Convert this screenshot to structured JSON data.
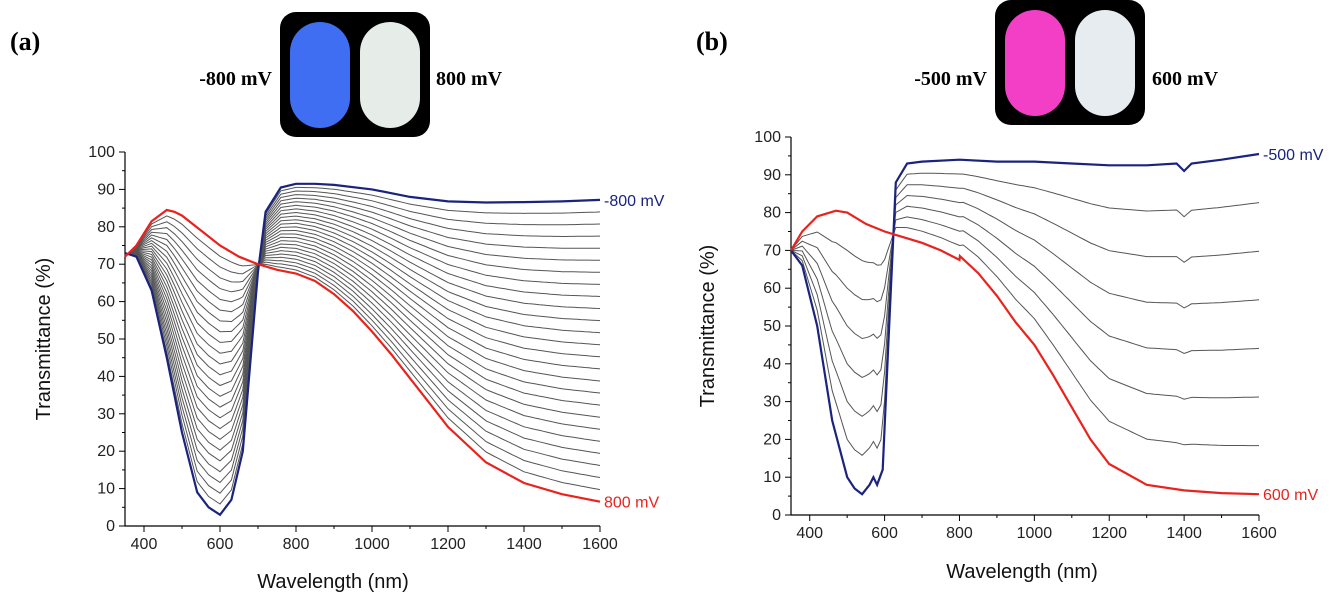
{
  "chart_data": [
    {
      "type": "line",
      "panel_label": "(a)",
      "photo": {
        "left_label": "-800 mV",
        "right_label": "800 mV",
        "left_color": "#3f6ef2",
        "right_color": "#e6ece8",
        "frame_color": "#000000"
      },
      "xlabel": "Wavelength (nm)",
      "ylabel": "Transmittance (%)",
      "xlim": [
        350,
        1600
      ],
      "ylim": [
        0,
        100
      ],
      "xticks": [
        400,
        600,
        800,
        1000,
        1200,
        1400,
        1600
      ],
      "yticks": [
        0,
        10,
        20,
        30,
        40,
        50,
        60,
        70,
        80,
        90,
        100
      ],
      "intermediate_color": "#555555",
      "intermediate_count": 24,
      "series": [
        {
          "name": "-800 mV",
          "color": "#1a237e",
          "x": [
            350,
            380,
            420,
            460,
            500,
            540,
            570,
            600,
            630,
            660,
            700,
            720,
            760,
            800,
            850,
            900,
            1000,
            1100,
            1200,
            1300,
            1400,
            1500,
            1600
          ],
          "y": [
            73,
            72,
            63,
            45,
            25,
            9,
            5,
            3,
            7,
            20,
            68,
            84,
            90.5,
            91.5,
            91.5,
            91.2,
            90,
            88,
            86.8,
            86.5,
            86.6,
            86.8,
            87.2
          ]
        },
        {
          "name": "800 mV",
          "color": "#e8231e",
          "x": [
            350,
            380,
            420,
            460,
            480,
            500,
            550,
            600,
            650,
            700,
            750,
            800,
            850,
            900,
            950,
            1000,
            1050,
            1100,
            1150,
            1200,
            1300,
            1400,
            1500,
            1600
          ],
          "y": [
            72,
            75,
            81.5,
            84.5,
            84,
            83,
            79,
            75,
            72,
            70,
            68.5,
            67.5,
            65.5,
            62,
            57.5,
            52,
            46,
            39.5,
            33,
            26.5,
            17,
            11.5,
            8.5,
            6.5
          ]
        }
      ]
    },
    {
      "type": "line",
      "panel_label": "(b)",
      "photo": {
        "left_label": "-500 mV",
        "right_label": "600 mV",
        "left_color": "#f23fc6",
        "right_color": "#e6ecef",
        "frame_color": "#000000"
      },
      "xlabel": "Wavelength (nm)",
      "ylabel": "Transmittance (%)",
      "xlim": [
        350,
        1600
      ],
      "ylim": [
        0,
        100
      ],
      "xticks": [
        400,
        600,
        800,
        1000,
        1200,
        1400,
        1600
      ],
      "yticks": [
        0,
        10,
        20,
        30,
        40,
        50,
        60,
        70,
        80,
        90,
        100
      ],
      "intermediate_color": "#555555",
      "intermediate_count": 6,
      "series": [
        {
          "name": "-500 mV",
          "color": "#1a237e",
          "x": [
            350,
            380,
            420,
            460,
            500,
            520,
            540,
            560,
            570,
            580,
            595,
            610,
            630,
            660,
            700,
            800,
            900,
            1000,
            1100,
            1200,
            1300,
            1380,
            1400,
            1420,
            1500,
            1600
          ],
          "y": [
            70,
            66,
            50,
            25,
            10,
            7,
            5.5,
            8,
            10,
            8,
            12,
            45,
            88,
            93,
            93.5,
            94,
            93.5,
            93.5,
            93,
            92.5,
            92.5,
            93,
            91,
            93,
            94,
            95.5
          ]
        },
        {
          "name": "600 mV",
          "color": "#e8231e",
          "x": [
            350,
            380,
            420,
            470,
            500,
            550,
            600,
            650,
            700,
            750,
            800,
            801,
            850,
            900,
            950,
            1000,
            1050,
            1100,
            1150,
            1200,
            1300,
            1400,
            1500,
            1600
          ],
          "y": [
            70,
            75,
            79,
            80.5,
            80,
            77,
            75,
            73.5,
            72,
            70,
            67.5,
            68.5,
            64,
            58,
            51,
            45,
            37,
            28.5,
            20,
            13.5,
            8,
            6.5,
            5.8,
            5.5
          ]
        }
      ]
    }
  ]
}
